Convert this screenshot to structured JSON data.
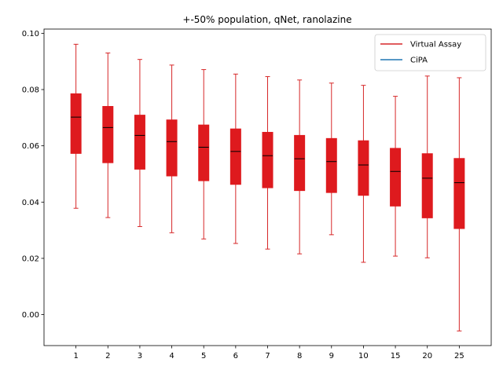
{
  "chart_data": {
    "type": "box",
    "title": "+-50% population, qNet, ranolazine",
    "xlabel": "",
    "ylabel": "",
    "categories": [
      "1",
      "2",
      "3",
      "4",
      "5",
      "6",
      "7",
      "8",
      "9",
      "10",
      "15",
      "20",
      "25"
    ],
    "ylim": [
      -0.011,
      0.1015
    ],
    "yticks": [
      0.0,
      0.02,
      0.04,
      0.06,
      0.08,
      0.1
    ],
    "ytick_labels": [
      "0.00",
      "0.02",
      "0.04",
      "0.06",
      "0.08",
      "0.10"
    ],
    "grid": false,
    "legend_position": "top-right",
    "series": [
      {
        "name": "Virtual Assay",
        "color": "#d62728",
        "box_fill": "#de1a1e",
        "median_color": "#000000",
        "boxes": [
          {
            "whislo": 0.0378,
            "q1": 0.0573,
            "med": 0.0702,
            "q3": 0.0785,
            "whishi": 0.0961
          },
          {
            "whislo": 0.0345,
            "q1": 0.054,
            "med": 0.0665,
            "q3": 0.074,
            "whishi": 0.093
          },
          {
            "whislo": 0.0313,
            "q1": 0.0517,
            "med": 0.0637,
            "q3": 0.0709,
            "whishi": 0.0907
          },
          {
            "whislo": 0.0291,
            "q1": 0.0493,
            "med": 0.0615,
            "q3": 0.0692,
            "whishi": 0.0887
          },
          {
            "whislo": 0.0269,
            "q1": 0.0476,
            "med": 0.0595,
            "q3": 0.0674,
            "whishi": 0.0871
          },
          {
            "whislo": 0.0253,
            "q1": 0.0463,
            "med": 0.058,
            "q3": 0.066,
            "whishi": 0.0855
          },
          {
            "whislo": 0.0233,
            "q1": 0.0451,
            "med": 0.0565,
            "q3": 0.0648,
            "whishi": 0.0846
          },
          {
            "whislo": 0.0216,
            "q1": 0.0441,
            "med": 0.0554,
            "q3": 0.0637,
            "whishi": 0.0834
          },
          {
            "whislo": 0.0284,
            "q1": 0.0434,
            "med": 0.0544,
            "q3": 0.0626,
            "whishi": 0.0823
          },
          {
            "whislo": 0.0186,
            "q1": 0.0424,
            "med": 0.0532,
            "q3": 0.0618,
            "whishi": 0.0815
          },
          {
            "whislo": 0.0208,
            "q1": 0.0386,
            "med": 0.0509,
            "q3": 0.0591,
            "whishi": 0.0776
          },
          {
            "whislo": 0.0202,
            "q1": 0.0344,
            "med": 0.0485,
            "q3": 0.0572,
            "whishi": 0.0848
          },
          {
            "whislo": -0.0058,
            "q1": 0.0306,
            "med": 0.0469,
            "q3": 0.0555,
            "whishi": 0.0842
          }
        ]
      },
      {
        "name": "CiPA",
        "color": "#1f77b4",
        "boxes": []
      }
    ]
  }
}
